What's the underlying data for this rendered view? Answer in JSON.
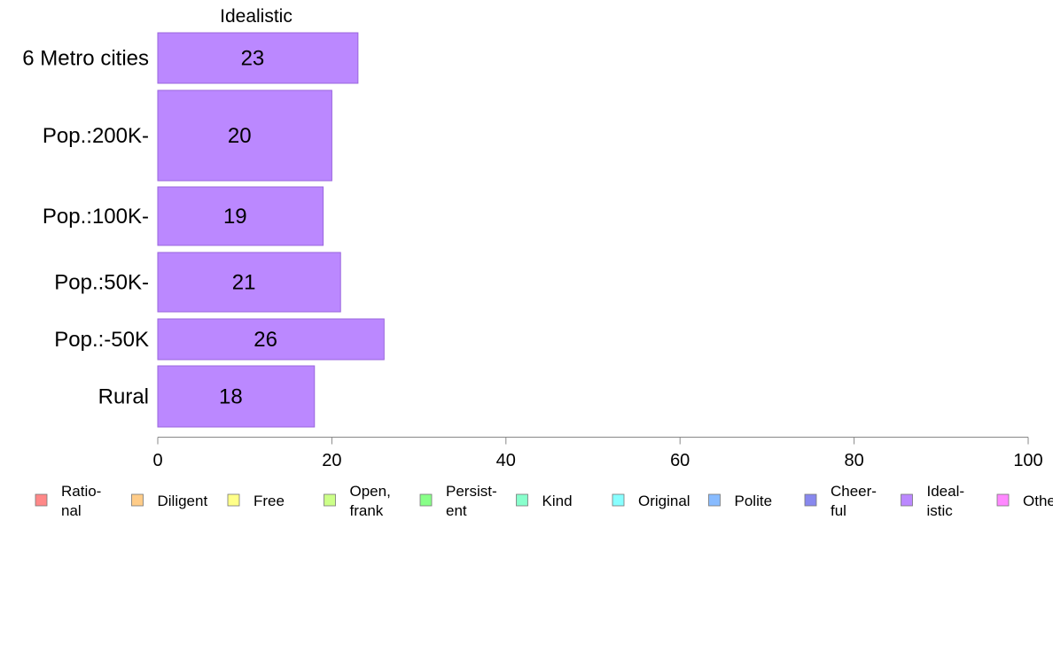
{
  "chart_data": {
    "type": "bar",
    "orientation": "horizontal",
    "title": "Idealistic",
    "categories": [
      "6 Metro cities",
      "Pop.:200K-",
      "Pop.:100K-",
      "Pop.:50K-",
      "Pop.:-50K",
      "Rural"
    ],
    "values": [
      23,
      20,
      19,
      21,
      26,
      18
    ],
    "value_labels": [
      "23",
      "20",
      "19",
      "21",
      "26",
      "18"
    ],
    "xlim": [
      0,
      100
    ],
    "xticks": [
      "0",
      "20",
      "40",
      "60",
      "80",
      "100"
    ],
    "bar_color": "#bb88ff",
    "bar_edge_color": "#9966dd",
    "grid": false,
    "legend_placement": "bottom",
    "legend": [
      {
        "lines": [
          "Ratio-",
          "nal"
        ],
        "color": "#ff8888"
      },
      {
        "lines": [
          "Diligent"
        ],
        "color": "#ffcc88"
      },
      {
        "lines": [
          "Free"
        ],
        "color": "#ffff88"
      },
      {
        "lines": [
          "Open,",
          "frank"
        ],
        "color": "#ccff88"
      },
      {
        "lines": [
          "Persist-",
          "ent"
        ],
        "color": "#88ff88"
      },
      {
        "lines": [
          "Kind"
        ],
        "color": "#88ffcc"
      },
      {
        "lines": [
          "Original"
        ],
        "color": "#88ffff"
      },
      {
        "lines": [
          "Polite"
        ],
        "color": "#88bbff"
      },
      {
        "lines": [
          "Cheer-",
          "ful"
        ],
        "color": "#8888ee"
      },
      {
        "lines": [
          "Ideal-",
          "istic"
        ],
        "color": "#bb88ff"
      },
      {
        "lines": [
          "Others"
        ],
        "color": "#ff88ff"
      }
    ]
  }
}
